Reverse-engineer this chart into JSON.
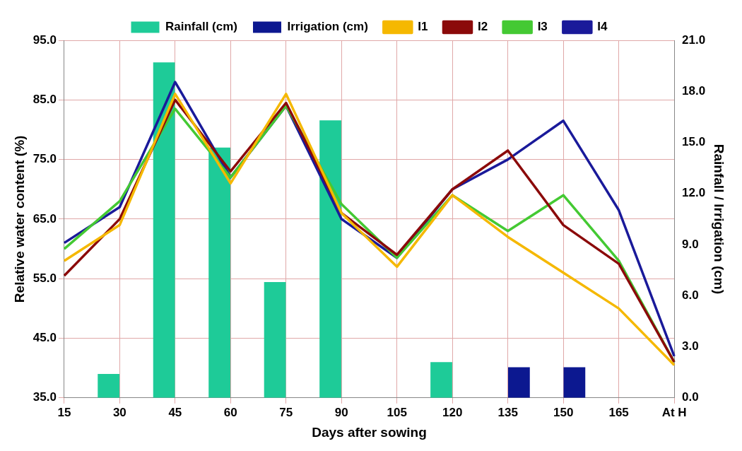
{
  "chart_data": {
    "type": "line",
    "xlabel": "Days after sowing",
    "ylabel": "Relative water content (%)",
    "y2label": "Rainfall / Irrigation (cm)",
    "categories": [
      "15",
      "30",
      "45",
      "60",
      "75",
      "90",
      "105",
      "120",
      "135",
      "150",
      "165",
      "At H"
    ],
    "series": [
      {
        "name": "Rainfall (cm)",
        "type": "bar",
        "axis": "y2",
        "color": "#1ecb98",
        "values": [
          null,
          1.4,
          19.7,
          14.7,
          6.8,
          16.3,
          null,
          2.1,
          null,
          null,
          null,
          null
        ]
      },
      {
        "name": "Irrigation (cm)",
        "type": "bar",
        "axis": "y2",
        "color": "#0c1890",
        "values": [
          null,
          null,
          null,
          null,
          null,
          null,
          null,
          null,
          1.8,
          1.8,
          null,
          null
        ]
      },
      {
        "name": "I1",
        "color": "#f5b800",
        "values": [
          58,
          64,
          86,
          71,
          86,
          66,
          57,
          69,
          62,
          56,
          50,
          40.5
        ]
      },
      {
        "name": "I2",
        "color": "#8b0a0a",
        "values": [
          55.5,
          65,
          85,
          73,
          84.5,
          66,
          59,
          70,
          76.5,
          64,
          57.5,
          41
        ]
      },
      {
        "name": "I3",
        "color": "#44c933",
        "values": [
          60,
          68,
          83.5,
          72,
          84,
          67.5,
          58.5,
          69,
          63,
          69,
          58,
          41
        ]
      },
      {
        "name": "I4",
        "color": "#1a1a9a",
        "values": [
          61,
          67,
          88,
          72,
          84,
          65,
          58.5,
          70,
          75,
          81.5,
          66.5,
          42
        ]
      }
    ],
    "ylim": [
      35,
      95
    ],
    "yticks": [
      {
        "value": 35,
        "label": "35.0"
      },
      {
        "value": 45,
        "label": "45.0"
      },
      {
        "value": 55,
        "label": "55.0"
      },
      {
        "value": 65,
        "label": "65.0"
      },
      {
        "value": 75,
        "label": "75.0"
      },
      {
        "value": 85,
        "label": "85.0"
      },
      {
        "value": 95,
        "label": "95.0"
      }
    ],
    "y2lim": [
      0,
      21
    ],
    "y2ticks": [
      {
        "value": 0,
        "label": "0.0"
      },
      {
        "value": 3,
        "label": "3.0"
      },
      {
        "value": 6,
        "label": "6.0"
      },
      {
        "value": 9,
        "label": "9.0"
      },
      {
        "value": 12,
        "label": "12.0"
      },
      {
        "value": 15,
        "label": "15.0"
      },
      {
        "value": 18,
        "label": "18.0"
      },
      {
        "value": 21,
        "label": "21.0"
      }
    ],
    "grid": true,
    "legend": "top",
    "marker": "none",
    "line_style": "solid"
  }
}
